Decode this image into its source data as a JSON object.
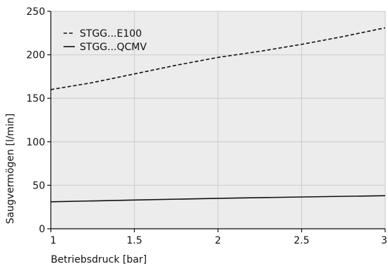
{
  "chart_data": {
    "type": "line",
    "title": "",
    "xlabel": "Betriebsdruck [bar]",
    "ylabel": "Saugvermögen [l/min]",
    "xlim": [
      1,
      3
    ],
    "ylim": [
      0,
      250
    ],
    "x_ticks": [
      "1",
      "1.5",
      "2",
      "2.5",
      "3"
    ],
    "y_ticks": [
      "0",
      "50",
      "100",
      "150",
      "200",
      "250"
    ],
    "grid": true,
    "legend_position": "top-left",
    "series": [
      {
        "name": "STGG...E100",
        "line_style": "dashed",
        "color": "#111111",
        "x": [
          1,
          1.25,
          1.5,
          1.75,
          2,
          2.25,
          2.5,
          2.75,
          3
        ],
        "y": [
          160,
          168,
          178,
          188,
          197,
          204,
          212,
          221,
          231
        ]
      },
      {
        "name": "STGG...QCMV",
        "line_style": "solid",
        "color": "#111111",
        "x": [
          1,
          1.5,
          2,
          2.5,
          3
        ],
        "y": [
          31,
          33,
          35,
          36.5,
          38
        ]
      }
    ]
  }
}
